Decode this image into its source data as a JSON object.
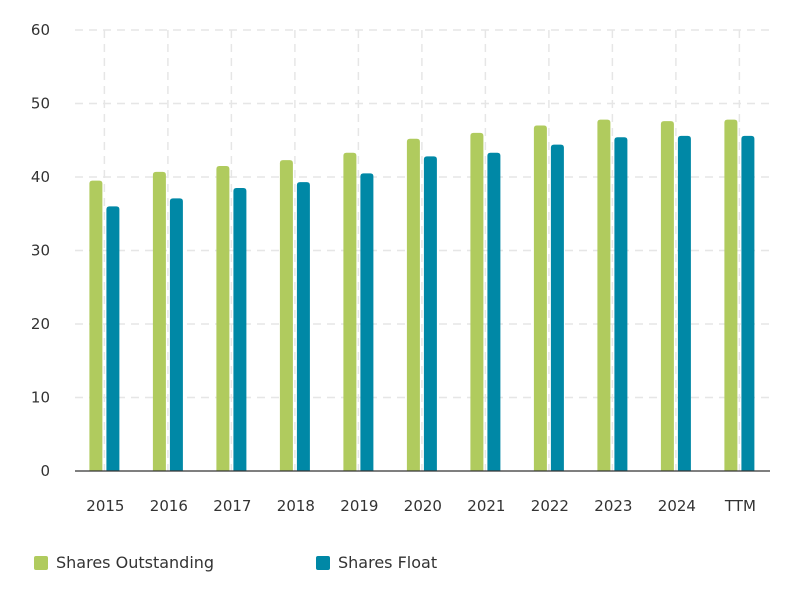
{
  "chart_data": {
    "type": "bar",
    "title": "",
    "xlabel": "",
    "ylabel": "",
    "categories": [
      "2015",
      "2016",
      "2017",
      "2018",
      "2019",
      "2020",
      "2021",
      "2022",
      "2023",
      "2024",
      "TTM"
    ],
    "series": [
      {
        "name": "Shares Outstanding",
        "color": "#b0cb5e",
        "values": [
          39.5,
          40.7,
          41.5,
          42.3,
          43.3,
          45.2,
          46.0,
          47.0,
          47.8,
          47.6,
          47.8
        ]
      },
      {
        "name": "Shares Float",
        "color": "#0088a6",
        "values": [
          36.0,
          37.1,
          38.5,
          39.3,
          40.5,
          42.8,
          43.3,
          44.4,
          45.4,
          45.6,
          45.6
        ]
      }
    ],
    "ylim": [
      0,
      60
    ],
    "yticks": [
      "0",
      "10",
      "20",
      "30",
      "40",
      "50",
      "60"
    ],
    "grid": true,
    "legend_position": "bottom-left"
  }
}
